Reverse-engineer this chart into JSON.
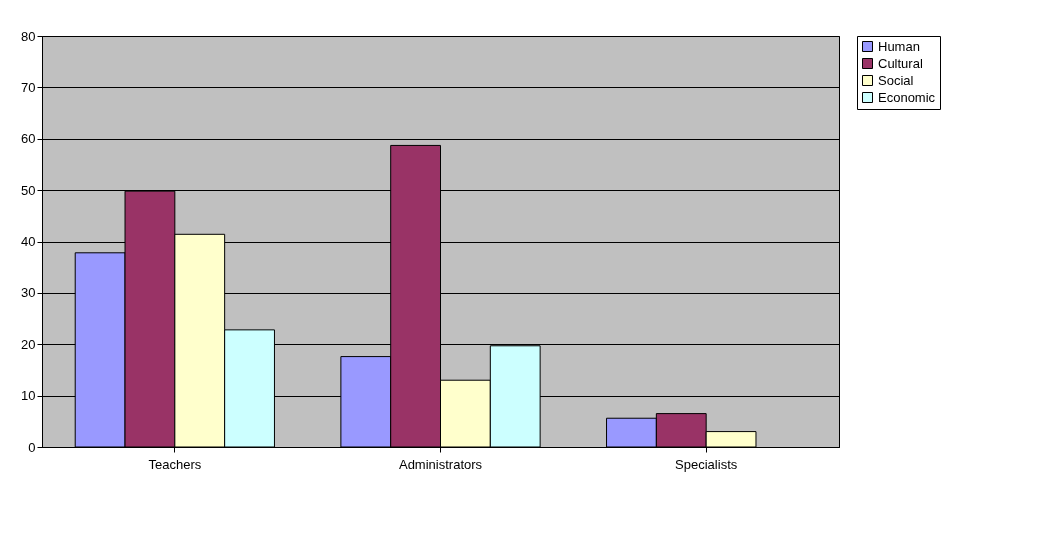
{
  "chart_data": {
    "type": "bar",
    "categories": [
      "Teachers",
      "Administrators",
      "Specialists"
    ],
    "series": [
      {
        "name": "Human",
        "color": "#9999ff",
        "values": [
          37.8,
          17.6,
          5.6
        ]
      },
      {
        "name": "Cultural",
        "color": "#993366",
        "values": [
          49.8,
          58.7,
          6.5
        ]
      },
      {
        "name": "Social",
        "color": "#ffffcc",
        "values": [
          41.4,
          13.0,
          3.0
        ]
      },
      {
        "name": "Economic",
        "color": "#ccffff",
        "values": [
          22.8,
          19.7,
          null
        ]
      }
    ],
    "ylim": [
      0,
      80
    ],
    "yticks": [
      0,
      10,
      20,
      30,
      40,
      50,
      60,
      70,
      80
    ],
    "grid": "y",
    "legend": "right"
  }
}
